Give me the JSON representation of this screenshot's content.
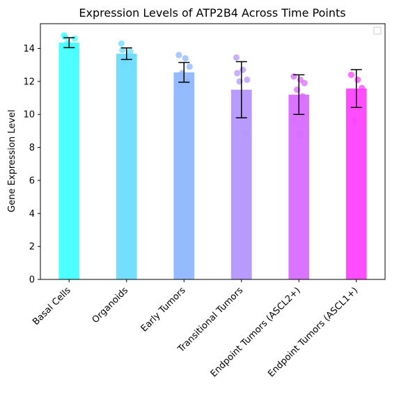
{
  "chart_data": {
    "type": "bar",
    "title": "Expression Levels of ATP2B4 Across Time Points",
    "xlabel": "",
    "ylabel": "Gene Expression Level",
    "ylim": [
      0,
      15.5
    ],
    "yticks": [
      0,
      2,
      4,
      6,
      8,
      10,
      12,
      14
    ],
    "grid": false,
    "legend": "top-right (empty)",
    "categories": [
      "Basal Cells",
      "Organoids",
      "Early Tumors",
      "Transitional Tumors",
      "Endpoint Tumors (ASCL2+)",
      "Endpoint Tumors (ASCL1+)"
    ],
    "values": [
      14.35,
      13.68,
      12.55,
      11.5,
      11.2,
      11.57
    ],
    "errors": [
      0.3,
      0.35,
      0.6,
      1.7,
      1.2,
      1.15
    ],
    "colors": [
      "#43ffff",
      "#6ddcff",
      "#8fb7ff",
      "#b596ff",
      "#d86cff",
      "#ff43ff"
    ],
    "points": [
      [
        14.8,
        14.1,
        14.6,
        14.3,
        14.0,
        14.7
      ],
      [
        14.3,
        13.3,
        13.5,
        13.1,
        13.8,
        13.9
      ],
      [
        13.6,
        13.4,
        12.9,
        12.5,
        12.0,
        11.8
      ],
      [
        13.45,
        12.7,
        12.1,
        12.0,
        8.8,
        12.5
      ],
      [
        12.3,
        12.1,
        11.9,
        11.5,
        11.1,
        9.7,
        8.8
      ],
      [
        12.4,
        12.1,
        11.6,
        9.6
      ]
    ]
  }
}
